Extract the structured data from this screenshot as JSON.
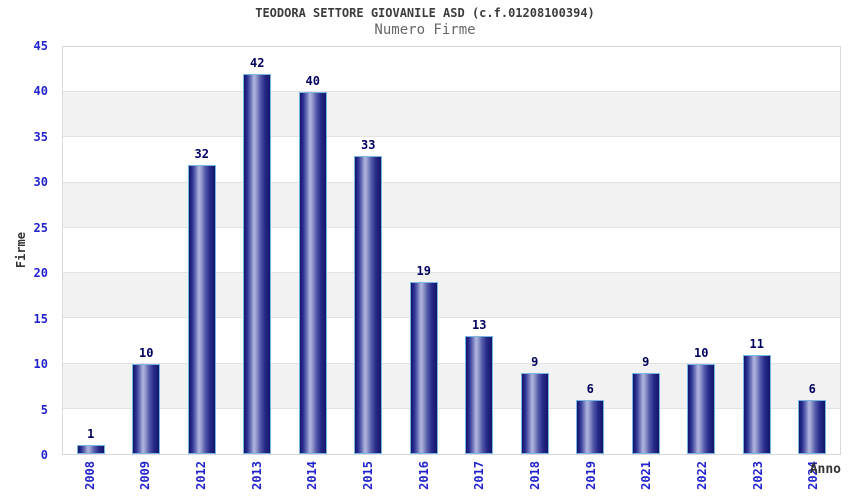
{
  "chart_data": {
    "type": "bar",
    "title": "TEODORA SETTORE GIOVANILE ASD (c.f.01208100394)",
    "subtitle": "Numero Firme",
    "xlabel": "Anno",
    "ylabel": "Firme",
    "categories": [
      "2008",
      "2009",
      "2012",
      "2013",
      "2014",
      "2015",
      "2016",
      "2017",
      "2018",
      "2019",
      "2021",
      "2022",
      "2023",
      "2024"
    ],
    "values": [
      1,
      10,
      32,
      42,
      40,
      33,
      19,
      13,
      9,
      6,
      9,
      10,
      11,
      6
    ],
    "ylim": [
      0,
      45
    ],
    "yticks": [
      0,
      5,
      10,
      15,
      20,
      25,
      30,
      35,
      40,
      45
    ],
    "grid": "horizontal-bands-alternating",
    "legend": "none",
    "bar_value_labels_shown": true,
    "colors": {
      "title": "#3c3c3c",
      "subtitle": "#666666",
      "axis_title": "#333333",
      "tick_label": "#2323cd",
      "value_label": "#00005e",
      "band_light": "#ffffff",
      "band_dark": "#f2f2f2",
      "gridline": "#e2e2e2",
      "plot_border": "#d9d9d9",
      "bar_dark_edge": "#14146a",
      "bar_highlight": "#b0b5de",
      "bar_border": "#79b7e3"
    }
  }
}
